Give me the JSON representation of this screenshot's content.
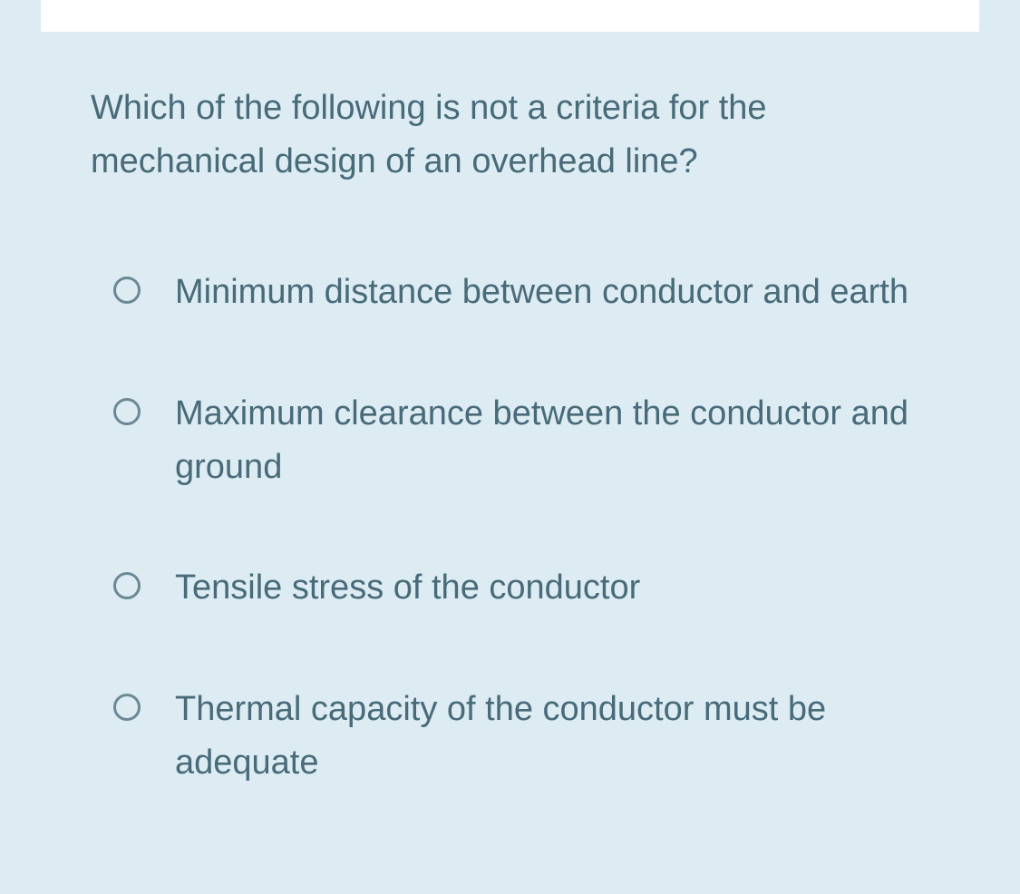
{
  "question": {
    "text": "Which of the following is not a criteria for the mechanical design of an overhead line?"
  },
  "options": [
    {
      "label": "Minimum distance between conductor and earth"
    },
    {
      "label": "Maximum clearance between the conductor and ground"
    },
    {
      "label": "Tensile stress of the conductor"
    },
    {
      "label": "Thermal capacity of the conductor must be adequate"
    }
  ],
  "colors": {
    "background": "#dcecf2",
    "text": "#486a79",
    "radio_border": "#6d8894",
    "top_bar": "#ffffff"
  },
  "typography": {
    "font_size_pt": 38,
    "line_height": 1.55,
    "font_weight": 400
  }
}
